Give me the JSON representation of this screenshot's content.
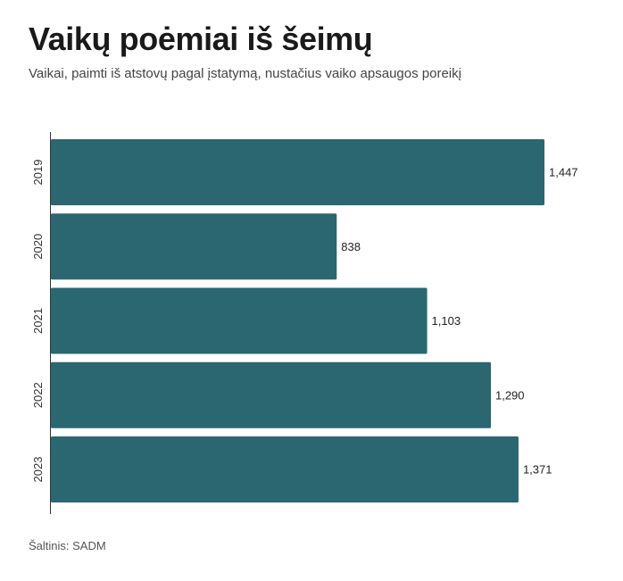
{
  "chart_data": {
    "type": "bar",
    "orientation": "horizontal",
    "title": "Vaikų poėmiai iš šeimų",
    "subtitle": "Vaikai, paimti iš atstovų pagal įstatymą, nustačius vaiko apsaugos poreikį",
    "categories": [
      "2019",
      "2020",
      "2021",
      "2022",
      "2023"
    ],
    "values": [
      1447,
      838,
      1103,
      1290,
      1371
    ],
    "data_labels": [
      "1,447",
      "838",
      "1,103",
      "1,290",
      "1,371"
    ],
    "grid": false,
    "legend": "none",
    "colors": {
      "bar": "#2a6770",
      "axis": "#333333"
    }
  },
  "source": "Šaltinis: SADM"
}
